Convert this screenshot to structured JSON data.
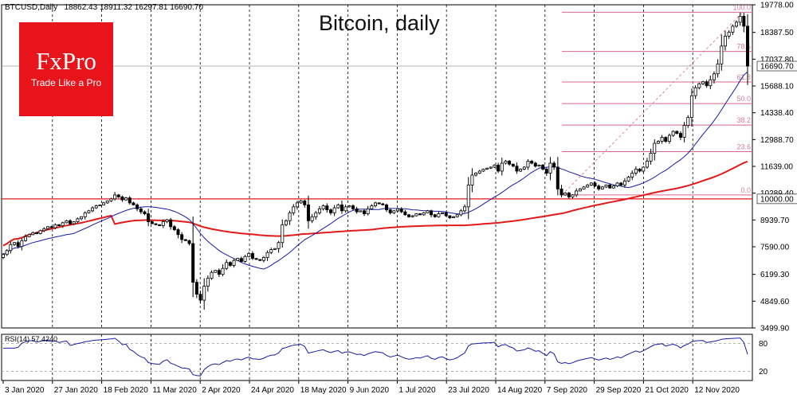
{
  "header": {
    "symbol_info": "BTCUSD,Daily",
    "ohlc": "18862.43 18911.32 16297.81 16690.70"
  },
  "title": "Bitcoin, daily",
  "logo": {
    "brand": "FxPro",
    "tagline": "Trade Like a Pro"
  },
  "rsi": {
    "label": "RSI(14) 57.4240",
    "levels": [
      "80",
      "20"
    ]
  },
  "colors": {
    "candle": "#000000",
    "ma_fast": "#1a1aa6",
    "ma_slow": "#e21a1a",
    "fib": "#d9668c",
    "support": "#e21a1a",
    "logo_bg": "#e8141c"
  },
  "chart_data": {
    "type": "candlestick",
    "title": "Bitcoin, daily",
    "x_tick_labels": [
      "3 Jan 2020",
      "27 Jan 2020",
      "18 Feb 2020",
      "11 Mar 2020",
      "2 Apr 2020",
      "24 Apr 2020",
      "18 May 2020",
      "9 Jun 2020",
      "1 Jul 2020",
      "23 Jul 2020",
      "14 Aug 2020",
      "7 Sep 2020",
      "29 Sep 2020",
      "21 Oct 2020",
      "12 Nov 2020"
    ],
    "y_tick_labels": [
      "19778.00",
      "18387.50",
      "17037.80",
      "15688.10",
      "14338.40",
      "12988.70",
      "11639.00",
      "10289.40",
      "8939.70",
      "7590.00",
      "6199.30",
      "4849.60",
      "3499.90"
    ],
    "ylim": [
      3499.9,
      19778.0
    ],
    "last_price": "16690.70",
    "support_level": "10000.00",
    "fibonacci_levels": [
      {
        "label": "100.0",
        "value": 19400
      },
      {
        "label": "78.6",
        "value": 17430
      },
      {
        "label": "61.8",
        "value": 15890
      },
      {
        "label": "50.0",
        "value": 14800
      },
      {
        "label": "38.2",
        "value": 13720
      },
      {
        "label": "23.6",
        "value": 12380
      },
      {
        "label": "0.0",
        "value": 10200
      }
    ],
    "candles_close": [
      7200,
      7400,
      7700,
      7800,
      7600,
      7900,
      8100,
      8200,
      8300,
      8250,
      8400,
      8500,
      8600,
      8550,
      8700,
      8650,
      8800,
      8900,
      8750,
      8850,
      9000,
      9100,
      9300,
      9400,
      9550,
      9650,
      9700,
      9800,
      9900,
      10000,
      10200,
      10100,
      9950,
      10050,
      9800,
      9700,
      9500,
      9350,
      9250,
      8850,
      8750,
      8700,
      8650,
      8850,
      8950,
      8600,
      8450,
      8200,
      7950,
      7900,
      7750,
      5800,
      5200,
      4900,
      5600,
      6000,
      6300,
      6400,
      6200,
      6500,
      6800,
      6650,
      6900,
      7000,
      6850,
      7100,
      7250,
      7000,
      6950,
      6900,
      7050,
      7300,
      7450,
      7500,
      7800,
      8700,
      8900,
      9300,
      9600,
      9800,
      9900,
      9700,
      8900,
      9100,
      9300,
      9500,
      9650,
      9450,
      9300,
      9550,
      9700,
      9400,
      9600,
      9650,
      9500,
      9350,
      9400,
      9250,
      9500,
      9650,
      9800,
      9750,
      9700,
      9450,
      9300,
      9400,
      9500,
      9350,
      9200,
      9100,
      9150,
      9250,
      9200,
      9300,
      9400,
      9200,
      9100,
      9250,
      9300,
      9150,
      9050,
      9100,
      9200,
      9400,
      9600,
      10700,
      11200,
      11300,
      11400,
      11500,
      11550,
      11600,
      11700,
      11400,
      11800,
      11900,
      11750,
      11650,
      11400,
      11500,
      11600,
      11900,
      11800,
      11650,
      11700,
      11500,
      11300,
      11800,
      11600,
      10500,
      10200,
      10300,
      10100,
      10200,
      10400,
      10500,
      10600,
      10700,
      10800,
      10650,
      10500,
      10600,
      10700,
      10550,
      10650,
      10800,
      10700,
      10900,
      11100,
      11300,
      11500,
      11400,
      11600,
      11900,
      12300,
      12800,
      12900,
      13100,
      12900,
      13200,
      13400,
      13300,
      13100,
      13700,
      14100,
      15200,
      15600,
      15800,
      15900,
      15700,
      16000,
      16300,
      16800,
      17700,
      18200,
      18400,
      18700,
      18900,
      19200,
      18700,
      16690
    ]
  }
}
